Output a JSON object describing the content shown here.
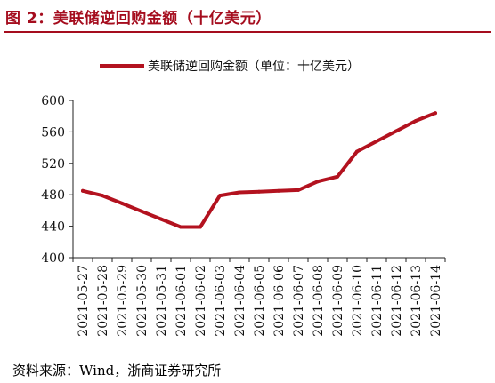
{
  "figure": {
    "title": "图 2：美联储逆回购金额（十亿美元）",
    "source": "资料来源：Wind，浙商证券研究所"
  },
  "colors": {
    "accent": "#a50d1e",
    "line": "#b3121f",
    "axis": "#222222"
  },
  "chart_data": {
    "type": "line",
    "title": "",
    "xlabel": "",
    "ylabel": "",
    "ylim": [
      400,
      600
    ],
    "yticks": [
      400,
      440,
      480,
      520,
      560,
      600
    ],
    "grid": false,
    "legend_position": "top-center",
    "categories": [
      "2021-05-27",
      "2021-05-28",
      "2021-05-29",
      "2021-05-30",
      "2021-05-31",
      "2021-06-01",
      "2021-06-02",
      "2021-06-03",
      "2021-06-04",
      "2021-06-05",
      "2021-06-06",
      "2021-06-07",
      "2021-06-08",
      "2021-06-09",
      "2021-06-10",
      "2021-06-11",
      "2021-06-12",
      "2021-06-13",
      "2021-06-14"
    ],
    "series": [
      {
        "name": "美联储逆回购金额（单位：十亿美元）",
        "values": [
          485,
          479,
          469,
          459,
          449,
          439,
          439,
          479,
          483,
          484,
          485,
          486,
          497,
          503,
          535,
          548,
          561,
          574,
          584
        ],
        "color": "#b3121f"
      }
    ]
  }
}
